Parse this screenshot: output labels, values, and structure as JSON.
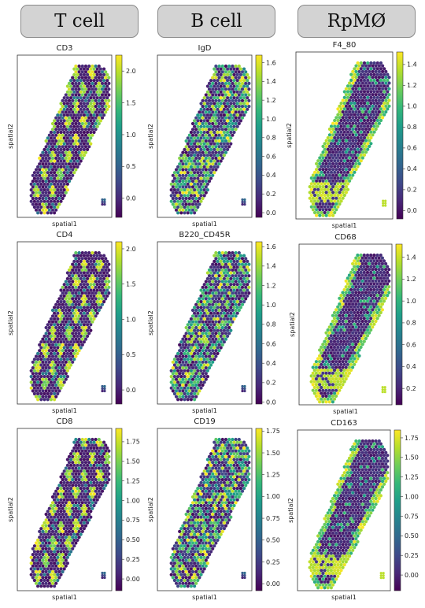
{
  "headers": [
    {
      "label": "T cell"
    },
    {
      "label": "B cell"
    },
    {
      "label": "RpMØ"
    }
  ],
  "colormap": "viridis",
  "chart_data": [
    {
      "type": "heatmap",
      "title": "CD3",
      "xlabel": "spatial1",
      "ylabel": "spatial2",
      "colorbar": {
        "ticks": [
          "0.0",
          "0.5",
          "1.0",
          "1.5",
          "2.0"
        ],
        "range": [
          -0.3,
          2.25
        ]
      }
    },
    {
      "type": "heatmap",
      "title": "IgD",
      "xlabel": "spatial1",
      "ylabel": "spatial2",
      "colorbar": {
        "ticks": [
          "0.0",
          "0.2",
          "0.4",
          "0.6",
          "0.8",
          "1.0",
          "1.2",
          "1.4",
          "1.6"
        ],
        "range": [
          -0.05,
          1.68
        ]
      }
    },
    {
      "type": "heatmap",
      "title": "F4_80",
      "xlabel": "spatial1",
      "ylabel": "spatial2",
      "colorbar": {
        "ticks": [
          "0.0",
          "0.2",
          "0.4",
          "0.6",
          "0.8",
          "1.0",
          "1.2",
          "1.4"
        ],
        "range": [
          -0.08,
          1.52
        ]
      }
    },
    {
      "type": "heatmap",
      "title": "CD4",
      "xlabel": "spatial1",
      "ylabel": "spatial2",
      "colorbar": {
        "ticks": [
          "0.0",
          "0.5",
          "1.0",
          "1.5",
          "2.0"
        ],
        "range": [
          -0.2,
          2.1
        ]
      }
    },
    {
      "type": "heatmap",
      "title": "B220_CD45R",
      "xlabel": "spatial1",
      "ylabel": "spatial2",
      "colorbar": {
        "ticks": [
          "0.0",
          "0.2",
          "0.4",
          "0.6",
          "0.8",
          "1.0",
          "1.2",
          "1.4",
          "1.6"
        ],
        "range": [
          -0.02,
          1.65
        ]
      }
    },
    {
      "type": "heatmap",
      "title": "CD68",
      "xlabel": "spatial1",
      "ylabel": "spatial2",
      "colorbar": {
        "ticks": [
          "0.2",
          "0.4",
          "0.6",
          "0.8",
          "1.0",
          "1.2",
          "1.4"
        ],
        "range": [
          0.05,
          1.52
        ]
      }
    },
    {
      "type": "heatmap",
      "title": "CD8",
      "xlabel": "spatial1",
      "ylabel": "spatial2",
      "colorbar": {
        "ticks": [
          "0.00",
          "0.25",
          "0.50",
          "0.75",
          "1.00",
          "1.25",
          "1.50",
          "1.75"
        ],
        "range": [
          -0.15,
          1.92
        ]
      }
    },
    {
      "type": "heatmap",
      "title": "CD19",
      "xlabel": "spatial1",
      "ylabel": "spatial2",
      "colorbar": {
        "ticks": [
          "0.00",
          "0.25",
          "0.50",
          "0.75",
          "1.00",
          "1.25",
          "1.50",
          "1.75"
        ],
        "range": [
          -0.08,
          1.78
        ]
      }
    },
    {
      "type": "heatmap",
      "title": "CD163",
      "xlabel": "spatial1",
      "ylabel": "spatial2",
      "colorbar": {
        "ticks": [
          "0.00",
          "0.25",
          "0.50",
          "0.75",
          "1.00",
          "1.25",
          "1.50",
          "1.75"
        ],
        "range": [
          -0.2,
          1.85
        ]
      }
    }
  ]
}
